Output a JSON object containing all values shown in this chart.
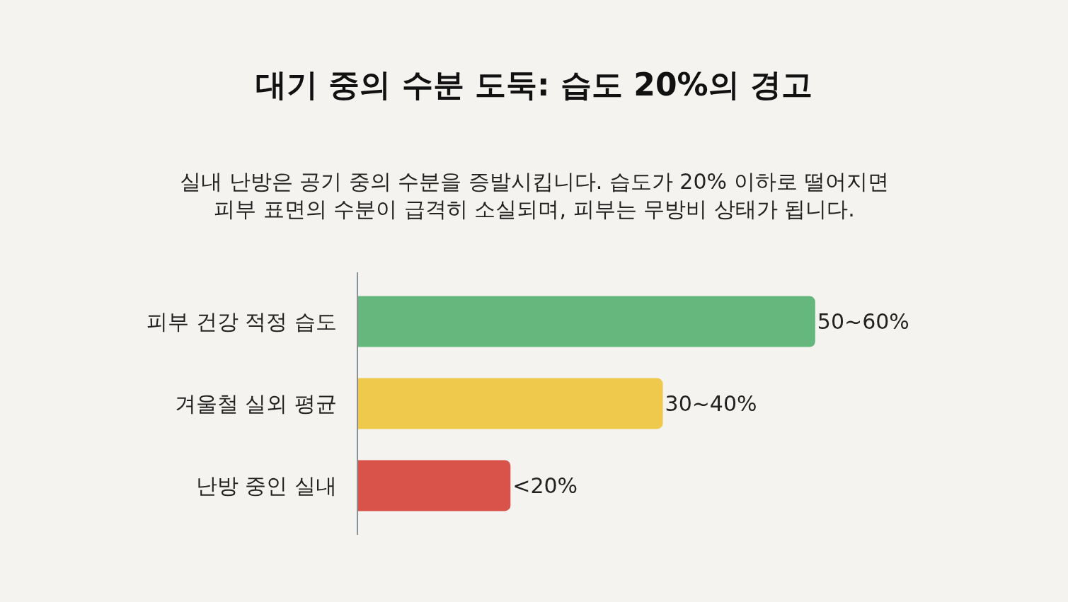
{
  "chart_data": {
    "type": "bar",
    "orientation": "horizontal",
    "title": "대기 중의 수분 도둑: 습도 20%의 경고",
    "subtitle": "실내 난방은 공기 중의 수분을 증발시킵니다. 습도가 20% 이하로 떨어지면\n피부 표면의 수분이 급격히 소실되며, 피부는 무방비 상태가 됩니다.",
    "categories": [
      "피부 건강 적정 습도",
      "겨울철 실외 평균",
      "난방 중인 실내"
    ],
    "values": [
      60,
      40,
      20
    ],
    "colors": [
      "#66b77e",
      "#eec94c",
      "#d9534a"
    ],
    "value_labels": [
      "50~60%",
      "30~40%",
      "<20%"
    ]
  }
}
